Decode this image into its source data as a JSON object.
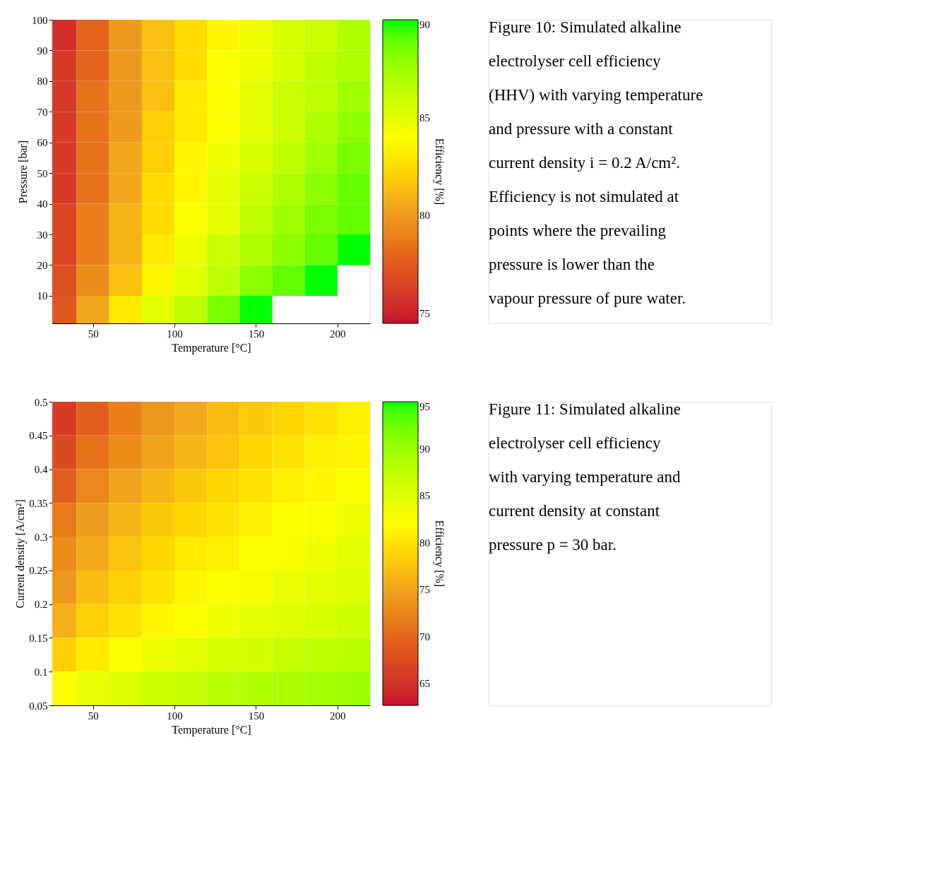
{
  "chart_data": [
    {
      "type": "heatmap",
      "xlabel": "Temperature [°C]",
      "ylabel": "Pressure [bar]",
      "clabel": "Efficiency [%]",
      "x": [
        30,
        50,
        70,
        90,
        110,
        130,
        150,
        170,
        190,
        210
      ],
      "y": [
        95,
        85,
        75,
        65,
        55,
        45,
        35,
        25,
        15,
        5
      ],
      "cells": [
        [
          75.5,
          78,
          80,
          81.5,
          82.5,
          83.5,
          84.5,
          85.5,
          86,
          87
        ],
        [
          76,
          78,
          80,
          81.5,
          82.5,
          84,
          84.5,
          85.5,
          86.5,
          87
        ],
        [
          76,
          78.5,
          80,
          81.5,
          83,
          84,
          85,
          86,
          86.5,
          87.5
        ],
        [
          76,
          78.5,
          80,
          82,
          83,
          84,
          85,
          86,
          87,
          88
        ],
        [
          76,
          78.5,
          80.5,
          82,
          83.5,
          84.5,
          85.5,
          86.5,
          87.5,
          88.5
        ],
        [
          76,
          78.5,
          80.5,
          82.5,
          83.5,
          85,
          86,
          87,
          88,
          89
        ],
        [
          76.5,
          79,
          81,
          82.5,
          84,
          85,
          86.5,
          87.5,
          88.5,
          89
        ],
        [
          76.5,
          79,
          81,
          83,
          84.5,
          86,
          87,
          88,
          89,
          90
        ],
        [
          77,
          79.5,
          81.5,
          83.5,
          85,
          86.5,
          88,
          89,
          90,
          null
        ],
        [
          77.5,
          80.5,
          83,
          85,
          86.5,
          88.5,
          90,
          null,
          null,
          null
        ]
      ],
      "xlim": [
        25,
        220
      ],
      "xticks": [
        50,
        100,
        150,
        200
      ],
      "ylim": [
        1,
        100
      ],
      "yticks": [
        10,
        20,
        30,
        40,
        50,
        60,
        70,
        80,
        90,
        100
      ],
      "clim": [
        74.5,
        90
      ],
      "cticks": [
        75,
        80,
        85,
        90
      ],
      "grid": false,
      "annotations": [
        "Figure 10: Simulated alkaline electrolyser cell efficiency (HHV) with varying temperature and pressure with a constant current density i = 0.2 A/cm². Efficiency is not simulated at points where the prevailing pressure is lower than the vapour pressure of pure water."
      ]
    },
    {
      "type": "heatmap",
      "xlabel": "Temperature [°C]",
      "ylabel": "Current density [A/cm²]",
      "clabel": "Efficiency [%]",
      "x": [
        30,
        50,
        70,
        90,
        110,
        130,
        150,
        170,
        190,
        210
      ],
      "y": [
        0.475,
        0.425,
        0.375,
        0.325,
        0.275,
        0.225,
        0.175,
        0.125,
        0.075
      ],
      "cells": [
        [
          66,
          69.5,
          72,
          74,
          75.5,
          77,
          78,
          79,
          80,
          81
        ],
        [
          67.5,
          71,
          73,
          75,
          76.5,
          77.5,
          79,
          80,
          81,
          81.5
        ],
        [
          69.5,
          72.5,
          75,
          76.5,
          78,
          79,
          80,
          81,
          81.5,
          82.5
        ],
        [
          71.5,
          74.5,
          76.5,
          78,
          79,
          80,
          81,
          82,
          82.5,
          83.5
        ],
        [
          73,
          75.5,
          77.5,
          79,
          80.5,
          81,
          82,
          83,
          83.5,
          84.5
        ],
        [
          74,
          77,
          78.5,
          80,
          81.5,
          82,
          83,
          84,
          84.5,
          85
        ],
        [
          76,
          78.5,
          80,
          81.5,
          82.5,
          83.5,
          84.5,
          85,
          85.5,
          86.5
        ],
        [
          78.5,
          80.5,
          82.5,
          83.5,
          84.5,
          85.5,
          86,
          87,
          87.5,
          88
        ],
        [
          82,
          84,
          85,
          86.5,
          87,
          88,
          88.5,
          89,
          89.5,
          90
        ]
      ],
      "xlim": [
        25,
        220
      ],
      "xticks": [
        50,
        100,
        150,
        200
      ],
      "ylim": [
        0.05,
        0.5
      ],
      "yticks": [
        0.05,
        0.1,
        0.15,
        0.2,
        0.25,
        0.3,
        0.35,
        0.4,
        0.45,
        0.5
      ],
      "clim": [
        62.7,
        95
      ],
      "cticks": [
        65,
        70,
        75,
        80,
        85,
        90,
        95
      ],
      "grid": false,
      "annotations": [
        "Figure 11: Simulated alkaline electrolyser cell efficiency with varying temperature and current density at constant pressure p = 30 bar."
      ]
    }
  ]
}
